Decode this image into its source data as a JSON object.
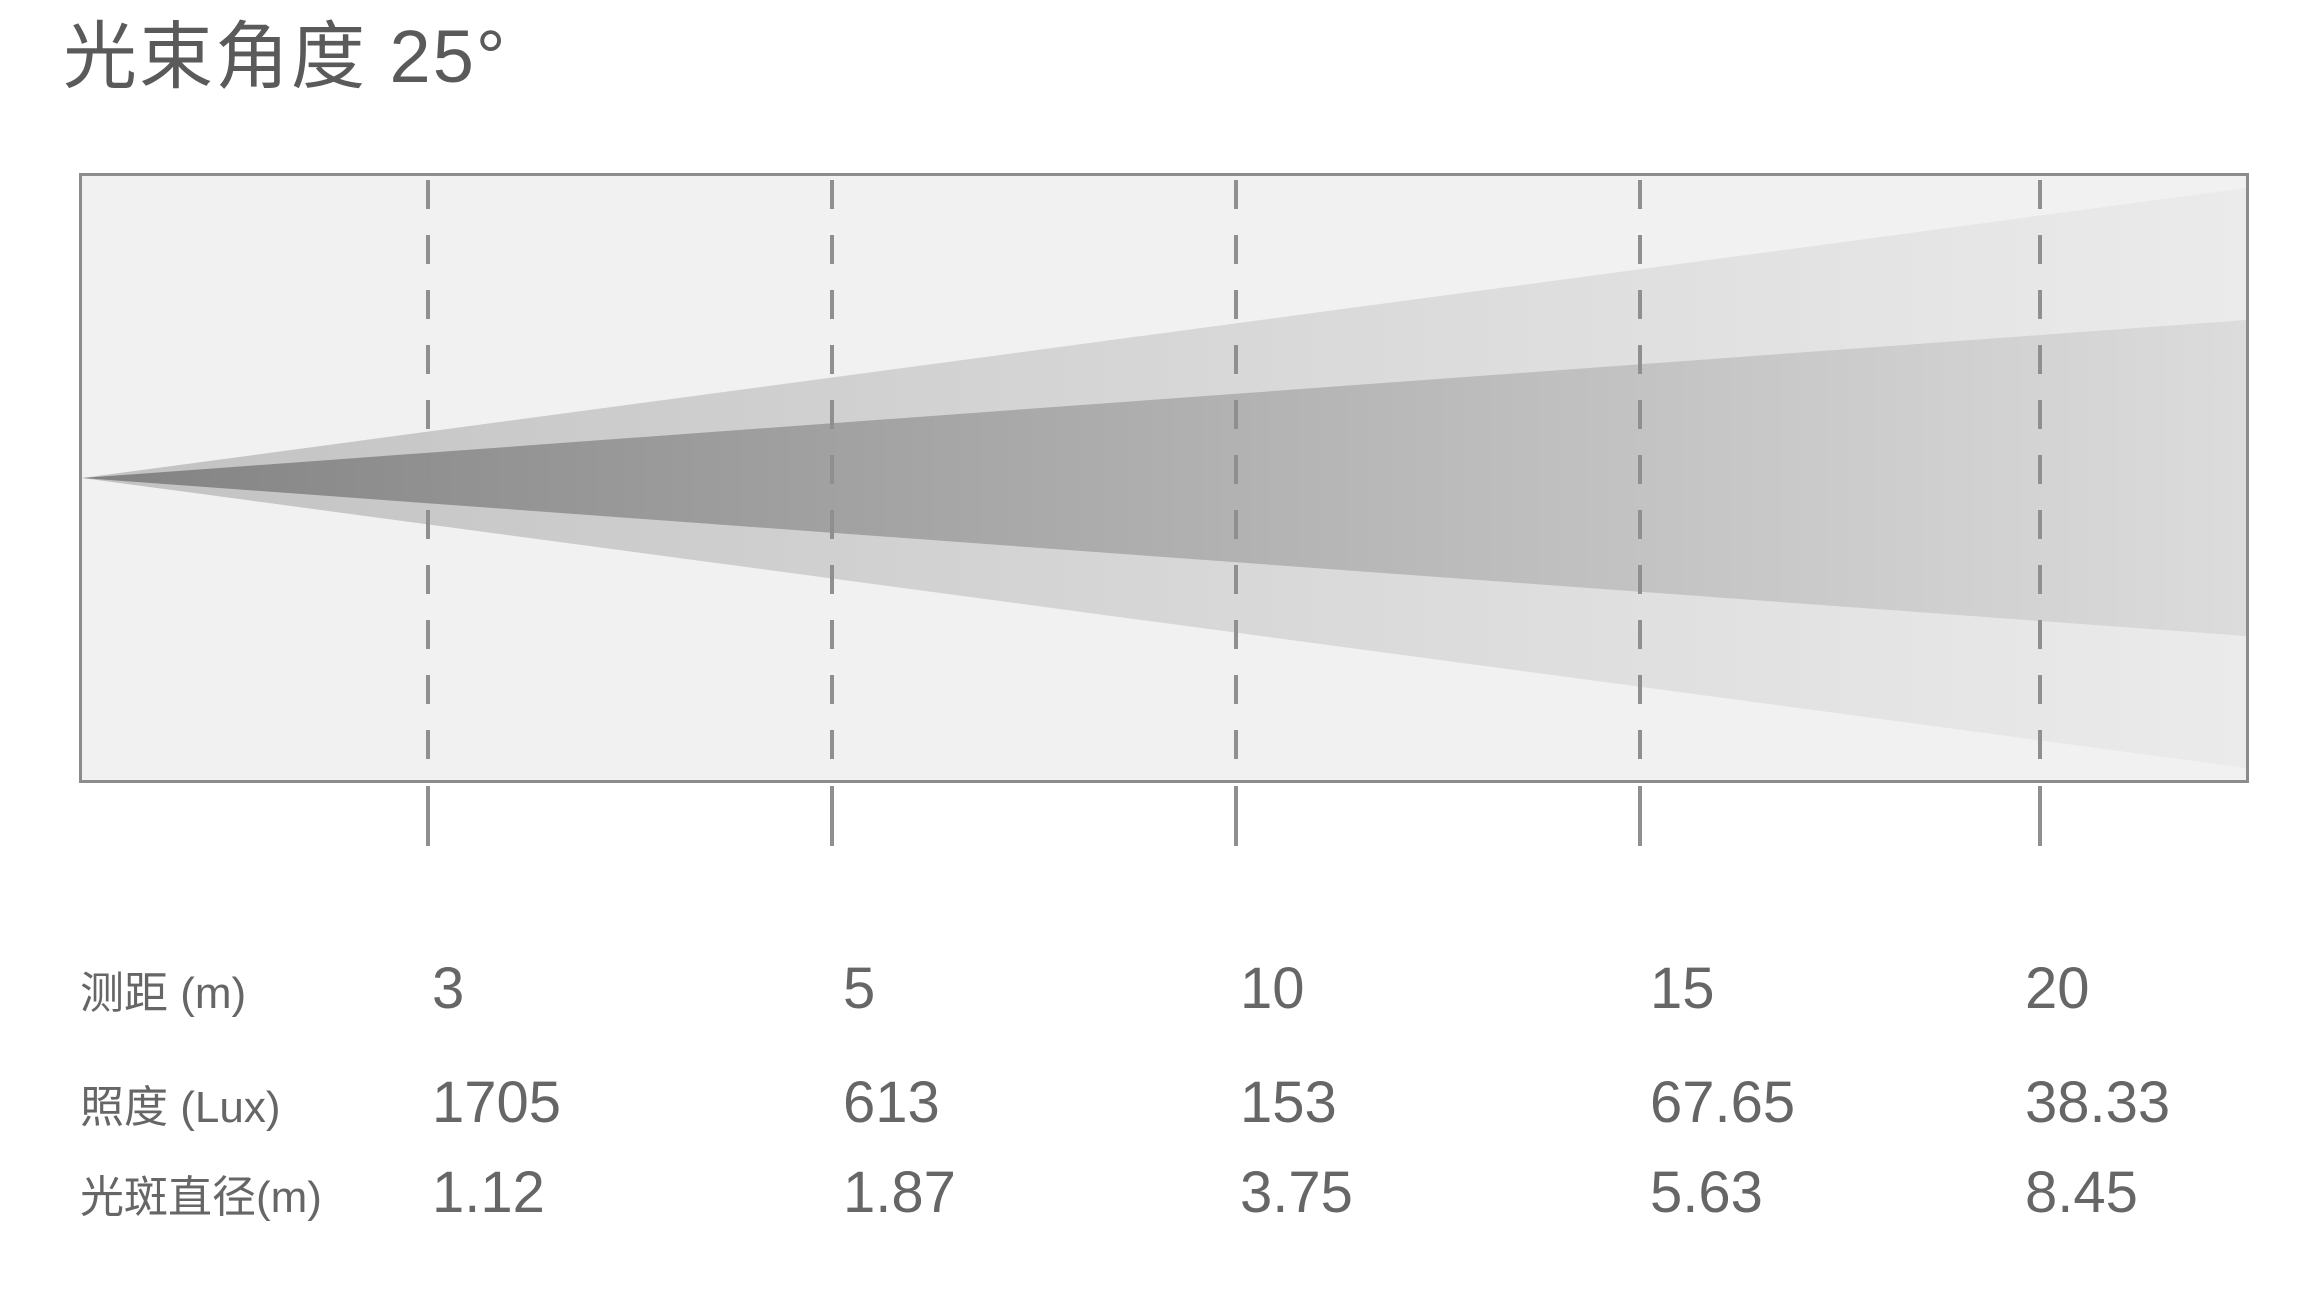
{
  "title": "光束角度 25°",
  "beam": {
    "angle_label": "25°",
    "angle_deg": 25
  },
  "table": {
    "rows": [
      {
        "label": "测距 (m)",
        "values": [
          "3",
          "5",
          "10",
          "15",
          "20"
        ]
      },
      {
        "label": "照度 (Lux)",
        "values": [
          "1705",
          "613",
          "153",
          "67.65",
          "38.33"
        ]
      },
      {
        "label": "光斑直径(m)",
        "values": [
          "1.12",
          "1.87",
          "3.75",
          "5.63",
          "8.45"
        ]
      }
    ]
  },
  "chart_data": {
    "type": "table",
    "title": "光束角度 25°",
    "beam_angle_deg": 25,
    "x_label": "测距 (m)",
    "categories": [
      3,
      5,
      10,
      15,
      20
    ],
    "series": [
      {
        "name": "照度 (Lux)",
        "values": [
          1705,
          613,
          153,
          67.65,
          38.33
        ]
      },
      {
        "name": "光斑直径(m)",
        "values": [
          1.12,
          1.87,
          3.75,
          5.63,
          8.45
        ]
      }
    ],
    "layout": {
      "markers": "5 evenly spaced vertical dashed lines, one per distance",
      "beam_origin": "left-center edge of panel, cone widens to the right",
      "grid": false,
      "legend": false
    }
  },
  "colors": {
    "background": "#ffffff",
    "panel_background": "#f1f1f1",
    "panel_border": "#8c8c8c",
    "beam_core_start": "#828282",
    "beam_core_end": "#dcdcdc",
    "beam_outer_start": "#c2c2c2",
    "beam_outer_end": "#ebebeb",
    "dashed_line": "#8f8f8f",
    "text": "#666666",
    "title_text": "#5a5a5a"
  }
}
